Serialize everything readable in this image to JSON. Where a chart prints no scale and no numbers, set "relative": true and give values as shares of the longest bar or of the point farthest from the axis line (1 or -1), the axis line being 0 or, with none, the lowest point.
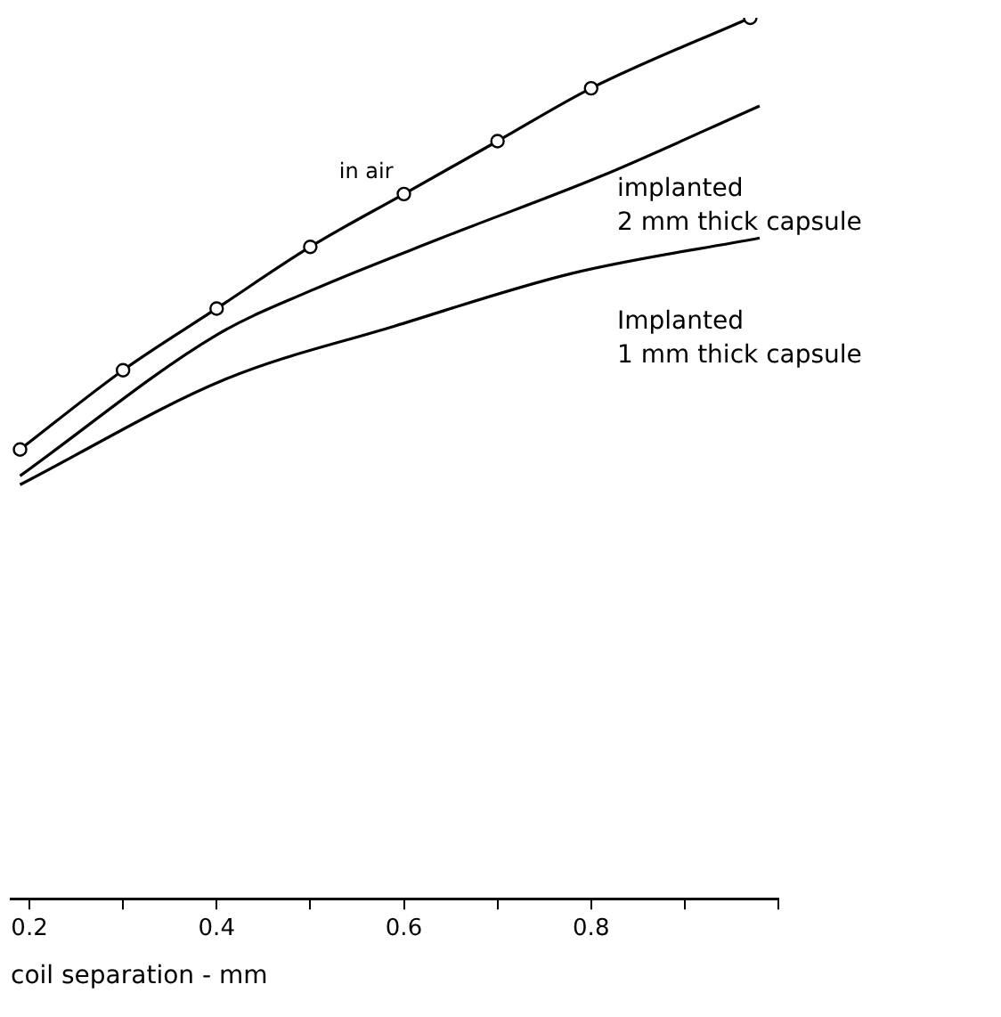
{
  "chart_data": {
    "type": "line",
    "relative": true,
    "xlabel": "coil separation - mm",
    "xlim": [
      0.18,
      1.0
    ],
    "xticks": [
      0.2,
      {
        "value": 0.3,
        "label": null
      },
      0.4,
      {
        "value": 0.5,
        "label": null
      },
      0.6,
      {
        "value": 0.7,
        "label": null
      },
      0.8,
      {
        "value": 0.9,
        "label": null
      },
      {
        "value": 1.0,
        "label": null
      }
    ],
    "grid": false,
    "legend": false,
    "series": [
      {
        "name": "in air",
        "color": "#000000",
        "marker": "circle",
        "x": [
          0.19,
          0.3,
          0.4,
          0.5,
          0.6,
          0.7,
          0.8,
          0.97
        ],
        "values": [
          0.51,
          0.6,
          0.67,
          0.74,
          0.8,
          0.86,
          0.92,
          1
        ]
      },
      {
        "name": "implanted 2 mm thick capsule",
        "color": "#000000",
        "marker": "none",
        "x": [
          0.19,
          0.4,
          0.5,
          0.64,
          0.81,
          0.98
        ],
        "values": [
          0.48,
          0.64,
          0.69,
          0.75,
          0.82,
          0.9
        ]
      },
      {
        "name": "Implanted 1 mm thick capsule",
        "color": "#000000",
        "marker": "none",
        "x": [
          0.19,
          0.41,
          0.59,
          0.78,
          0.98
        ],
        "values": [
          0.47,
          0.59,
          0.65,
          0.71,
          0.75
        ]
      }
    ]
  }
}
